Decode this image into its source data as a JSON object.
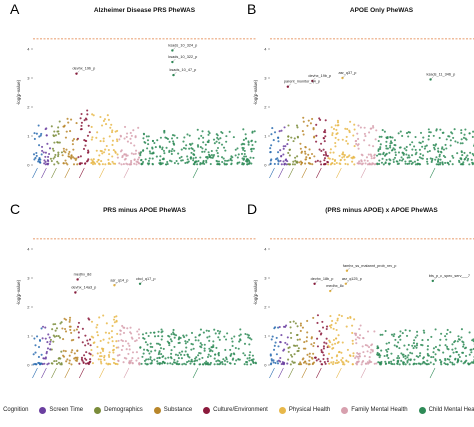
{
  "legend": {
    "items": [
      {
        "label": "Cognition",
        "color": "#2b6cb0"
      },
      {
        "label": "Screen Time",
        "color": "#6b3fa0"
      },
      {
        "label": "Demographics",
        "color": "#7a8c3a"
      },
      {
        "label": "Substance",
        "color": "#b8862a"
      },
      {
        "label": "Culture/Environment",
        "color": "#8b1a3c"
      },
      {
        "label": "Physical Health",
        "color": "#e8b84a"
      },
      {
        "label": "Family Mental Health",
        "color": "#d7a0ae"
      },
      {
        "label": "Child Mental Health",
        "color": "#2e8b57"
      }
    ]
  },
  "chart_data": [
    {
      "type": "scatter",
      "letter": "A",
      "title": "Alzheimer Disease PRS PheWAS",
      "ylabel": "-log(p-value)",
      "ylim": [
        0,
        5
      ],
      "yticks": [
        0,
        1,
        2,
        3,
        4
      ],
      "threshold": 4.35,
      "annotations": [
        {
          "label": "ksads_10_324_p",
          "x": 0.625,
          "y": 3.95
        },
        {
          "label": "ksads_10_322_p",
          "x": 0.625,
          "y": 3.55
        },
        {
          "label": "ksads_10_47_p",
          "x": 0.63,
          "y": 3.1
        },
        {
          "label": "devhx_19b_p",
          "x": 0.195,
          "y": 3.15
        }
      ]
    },
    {
      "type": "scatter",
      "letter": "B",
      "title": "APOE Only PheWAS",
      "ylabel": "-log(p-value)",
      "ylim": [
        0,
        5
      ],
      "yticks": [
        0,
        1,
        2,
        3,
        4
      ],
      "threshold": 4.35,
      "annotations": [
        {
          "label": "asr_q37_p",
          "x": 0.325,
          "y": 3.0
        },
        {
          "label": "devhx_19b_p",
          "x": 0.19,
          "y": 2.9
        },
        {
          "label": "parent_monitor_q4_p",
          "x": 0.08,
          "y": 2.7
        },
        {
          "label": "ksads_11_346_p",
          "x": 0.72,
          "y": 2.95
        }
      ]
    },
    {
      "type": "scatter",
      "letter": "C",
      "title": "PRS minus APOE PheWAS",
      "ylabel": "-log(p-value)",
      "ylim": [
        0,
        5
      ],
      "yticks": [
        0,
        1,
        2,
        3,
        4
      ],
      "threshold": 4.35,
      "annotations": [
        {
          "label": "medhx_8d",
          "x": 0.2,
          "y": 2.95
        },
        {
          "label": "asr_q14_p",
          "x": 0.365,
          "y": 2.75
        },
        {
          "label": "cbcl_q17_p",
          "x": 0.48,
          "y": 2.8
        },
        {
          "label": "devhx_14a3_p",
          "x": 0.19,
          "y": 2.5
        }
      ]
    },
    {
      "type": "scatter",
      "letter": "D",
      "title": "(PRS minus APOE) x APOE PheWAS",
      "ylabel": "-log(p-value)",
      "ylim": [
        0,
        5
      ],
      "yticks": [
        0,
        1,
        2,
        3,
        4
      ],
      "threshold": 4.35,
      "annotations": [
        {
          "label": "famhx_ss_matannt_prob_nrv_p",
          "x": 0.345,
          "y": 3.25
        },
        {
          "label": "devhx_18b_p",
          "x": 0.2,
          "y": 2.8
        },
        {
          "label": "asr_q125_p",
          "x": 0.34,
          "y": 2.8
        },
        {
          "label": "medhx_8c",
          "x": 0.27,
          "y": 2.55
        },
        {
          "label": "bts_p_c_spec_serv___7",
          "x": 0.73,
          "y": 2.9
        }
      ]
    }
  ]
}
